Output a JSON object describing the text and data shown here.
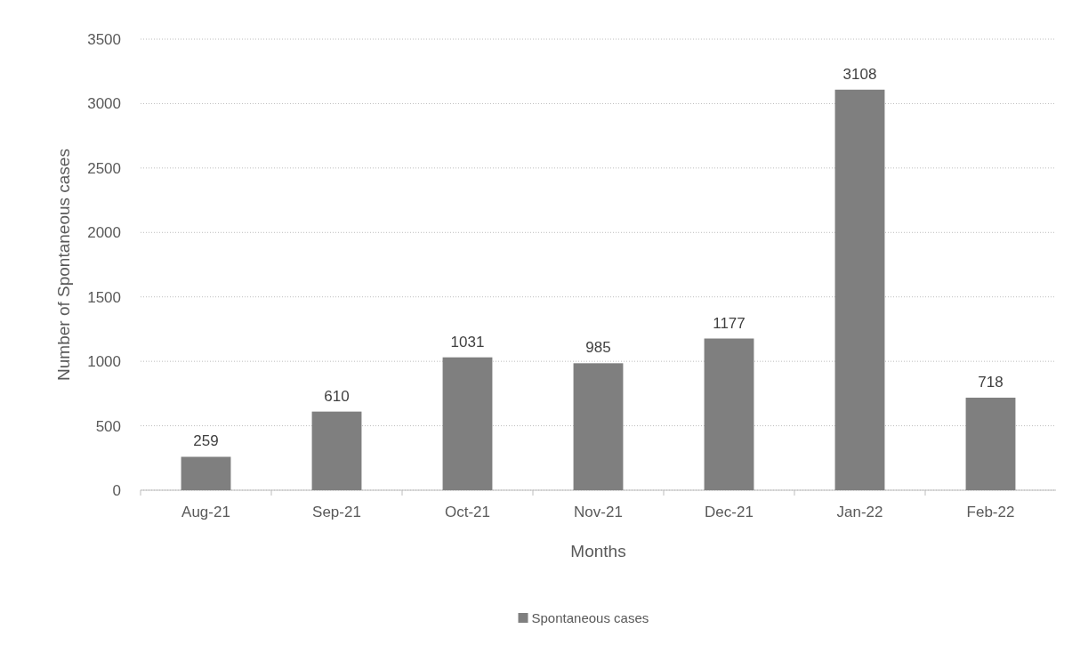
{
  "chart_data": {
    "type": "bar",
    "xlabel": "Months",
    "ylabel": "Number of Spontaneous cases",
    "categories": [
      "Aug-21",
      "Sep-21",
      "Oct-21",
      "Nov-21",
      "Dec-21",
      "Jan-22",
      "Feb-22"
    ],
    "series": [
      {
        "name": "Spontaneous cases",
        "color": "#7f7f7f",
        "values": [
          259,
          610,
          1031,
          985,
          1177,
          3108,
          718
        ]
      }
    ],
    "ylim": [
      0,
      3500
    ],
    "yticks": [
      0,
      500,
      1000,
      1500,
      2000,
      2500,
      3000,
      3500
    ],
    "grid": "y",
    "data_labels": true,
    "legend": "bottom"
  }
}
